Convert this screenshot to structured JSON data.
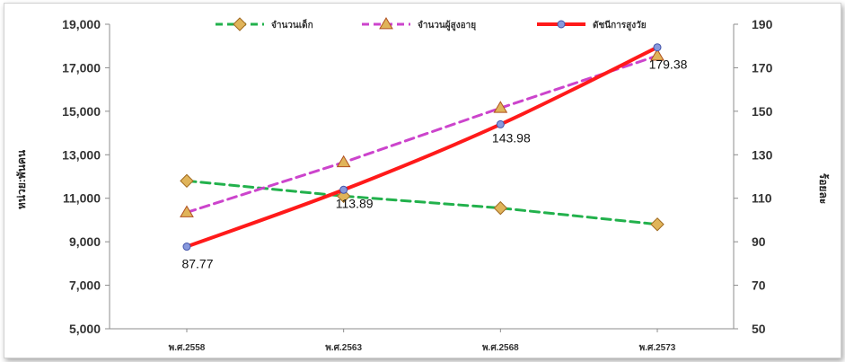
{
  "chart_data": {
    "type": "line",
    "categories": [
      "พ.ศ.2558",
      "พ.ศ.2563",
      "พ.ศ.2568",
      "พ.ศ.2573"
    ],
    "ylabel_left": "หน่วย:พันคน",
    "ylabel_right": "ร้อยละ",
    "ylim_left": [
      5000,
      19000
    ],
    "yticks_left": [
      "5,000",
      "7,000",
      "9,000",
      "11,000",
      "13,000",
      "15,000",
      "17,000",
      "19,000"
    ],
    "ylim_right": [
      50,
      190
    ],
    "yticks_right": [
      "50",
      "70",
      "90",
      "110",
      "130",
      "150",
      "170",
      "190"
    ],
    "grid": false,
    "legend_position": "top",
    "series": [
      {
        "name": "จำนวนเด็ก",
        "axis": "left",
        "values": [
          11800,
          11100,
          10550,
          9800
        ],
        "color": "#22b14c",
        "line_style": "dashed",
        "marker": "diamond",
        "marker_color": "#e0b45a"
      },
      {
        "name": "จำนวนผู้สูงอายุ",
        "axis": "left",
        "values": [
          10350,
          12650,
          15150,
          17550
        ],
        "color": "#cc44cc",
        "line_style": "dashed",
        "marker": "triangle",
        "marker_color": "#e0b45a"
      },
      {
        "name": "ดัชนีการสูงวัย",
        "axis": "right",
        "values": [
          87.77,
          113.89,
          143.98,
          179.38
        ],
        "data_labels": [
          "87.77",
          "113.89",
          "143.98",
          "179.38"
        ],
        "color": "#ff1a1a",
        "line_style": "solid",
        "marker": "circle",
        "marker_color": "#8899dd"
      }
    ]
  }
}
